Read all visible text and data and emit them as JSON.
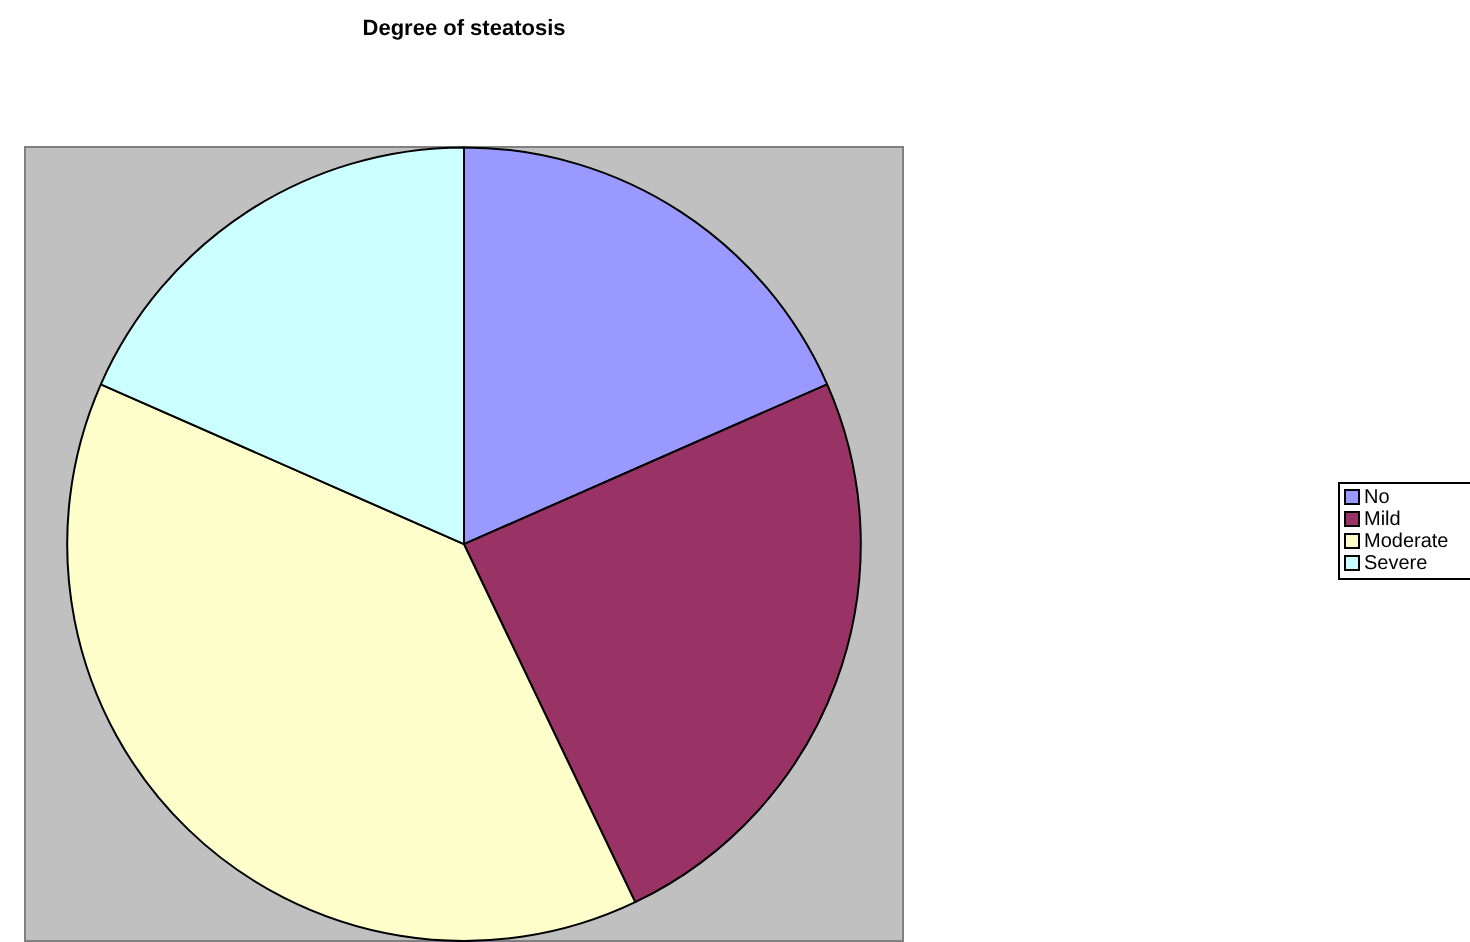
{
  "chart_data": {
    "type": "pie",
    "title": "Degree of steatosis",
    "categories": [
      "No",
      "Mild",
      "Moderate",
      "Severe"
    ],
    "values": [
      18.4,
      24.5,
      38.7,
      18.4
    ],
    "colors": [
      "#9999ff",
      "#993366",
      "#ffffcc",
      "#ccffff"
    ],
    "legend": "right"
  }
}
